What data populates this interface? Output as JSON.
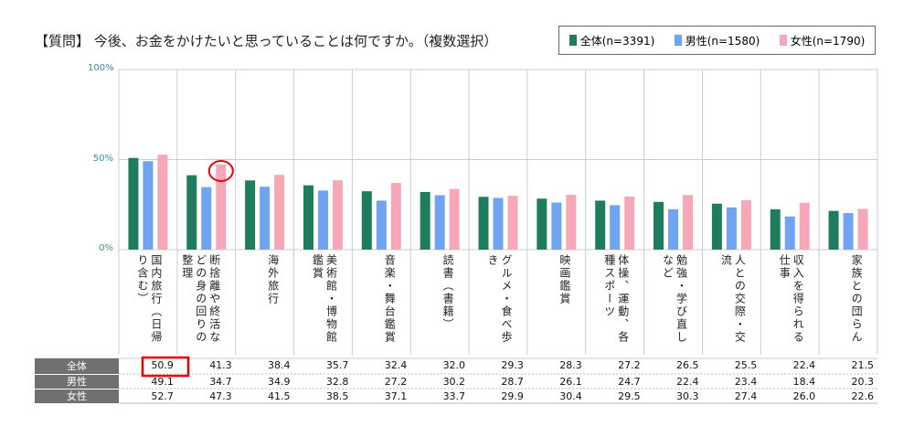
{
  "chart_data": {
    "type": "bar",
    "title": "【質問】 今後、お金をかけたいと思っていることは何ですか。（複数選択）",
    "categories": [
      "国内旅行（日帰り含む）",
      "断捨離や終活などの身の回りの整理",
      "海外旅行",
      "美術館・博物館鑑賞",
      "音楽・舞台鑑賞",
      "読書（書籍）",
      "グルメ・食べ歩き",
      "映画鑑賞",
      "体操、運動、各種スポーツ",
      "勉強・学び直しなど",
      "人との交際・交流",
      "収入を得られる仕事",
      "家族との団らん"
    ],
    "series": [
      {
        "name": "全体",
        "legend": "全体(n=3391)",
        "color": "#1e7d5e",
        "values": [
          50.9,
          41.3,
          38.4,
          35.7,
          32.4,
          32.0,
          29.3,
          28.3,
          27.2,
          26.5,
          25.5,
          22.4,
          21.5
        ]
      },
      {
        "name": "男性",
        "legend": "男性(n=1580)",
        "color": "#6fa4f2",
        "values": [
          49.1,
          34.7,
          34.9,
          32.8,
          27.2,
          30.2,
          28.7,
          26.1,
          24.7,
          22.4,
          23.4,
          18.4,
          20.3
        ]
      },
      {
        "name": "女性",
        "legend": "女性(n=1790)",
        "color": "#f7a8b8",
        "values": [
          52.7,
          47.3,
          41.5,
          38.5,
          37.1,
          33.7,
          29.9,
          30.4,
          29.5,
          30.3,
          27.4,
          26.0,
          22.6
        ]
      }
    ],
    "ylim": [
      0,
      100
    ],
    "yticks": [
      "0%",
      "50%",
      "100%"
    ],
    "grid": true,
    "legend_position": "top-right",
    "highlights": [
      "全体 国内旅行 50.9 (box)",
      "女性 断捨離 47.3 (circle)"
    ]
  }
}
